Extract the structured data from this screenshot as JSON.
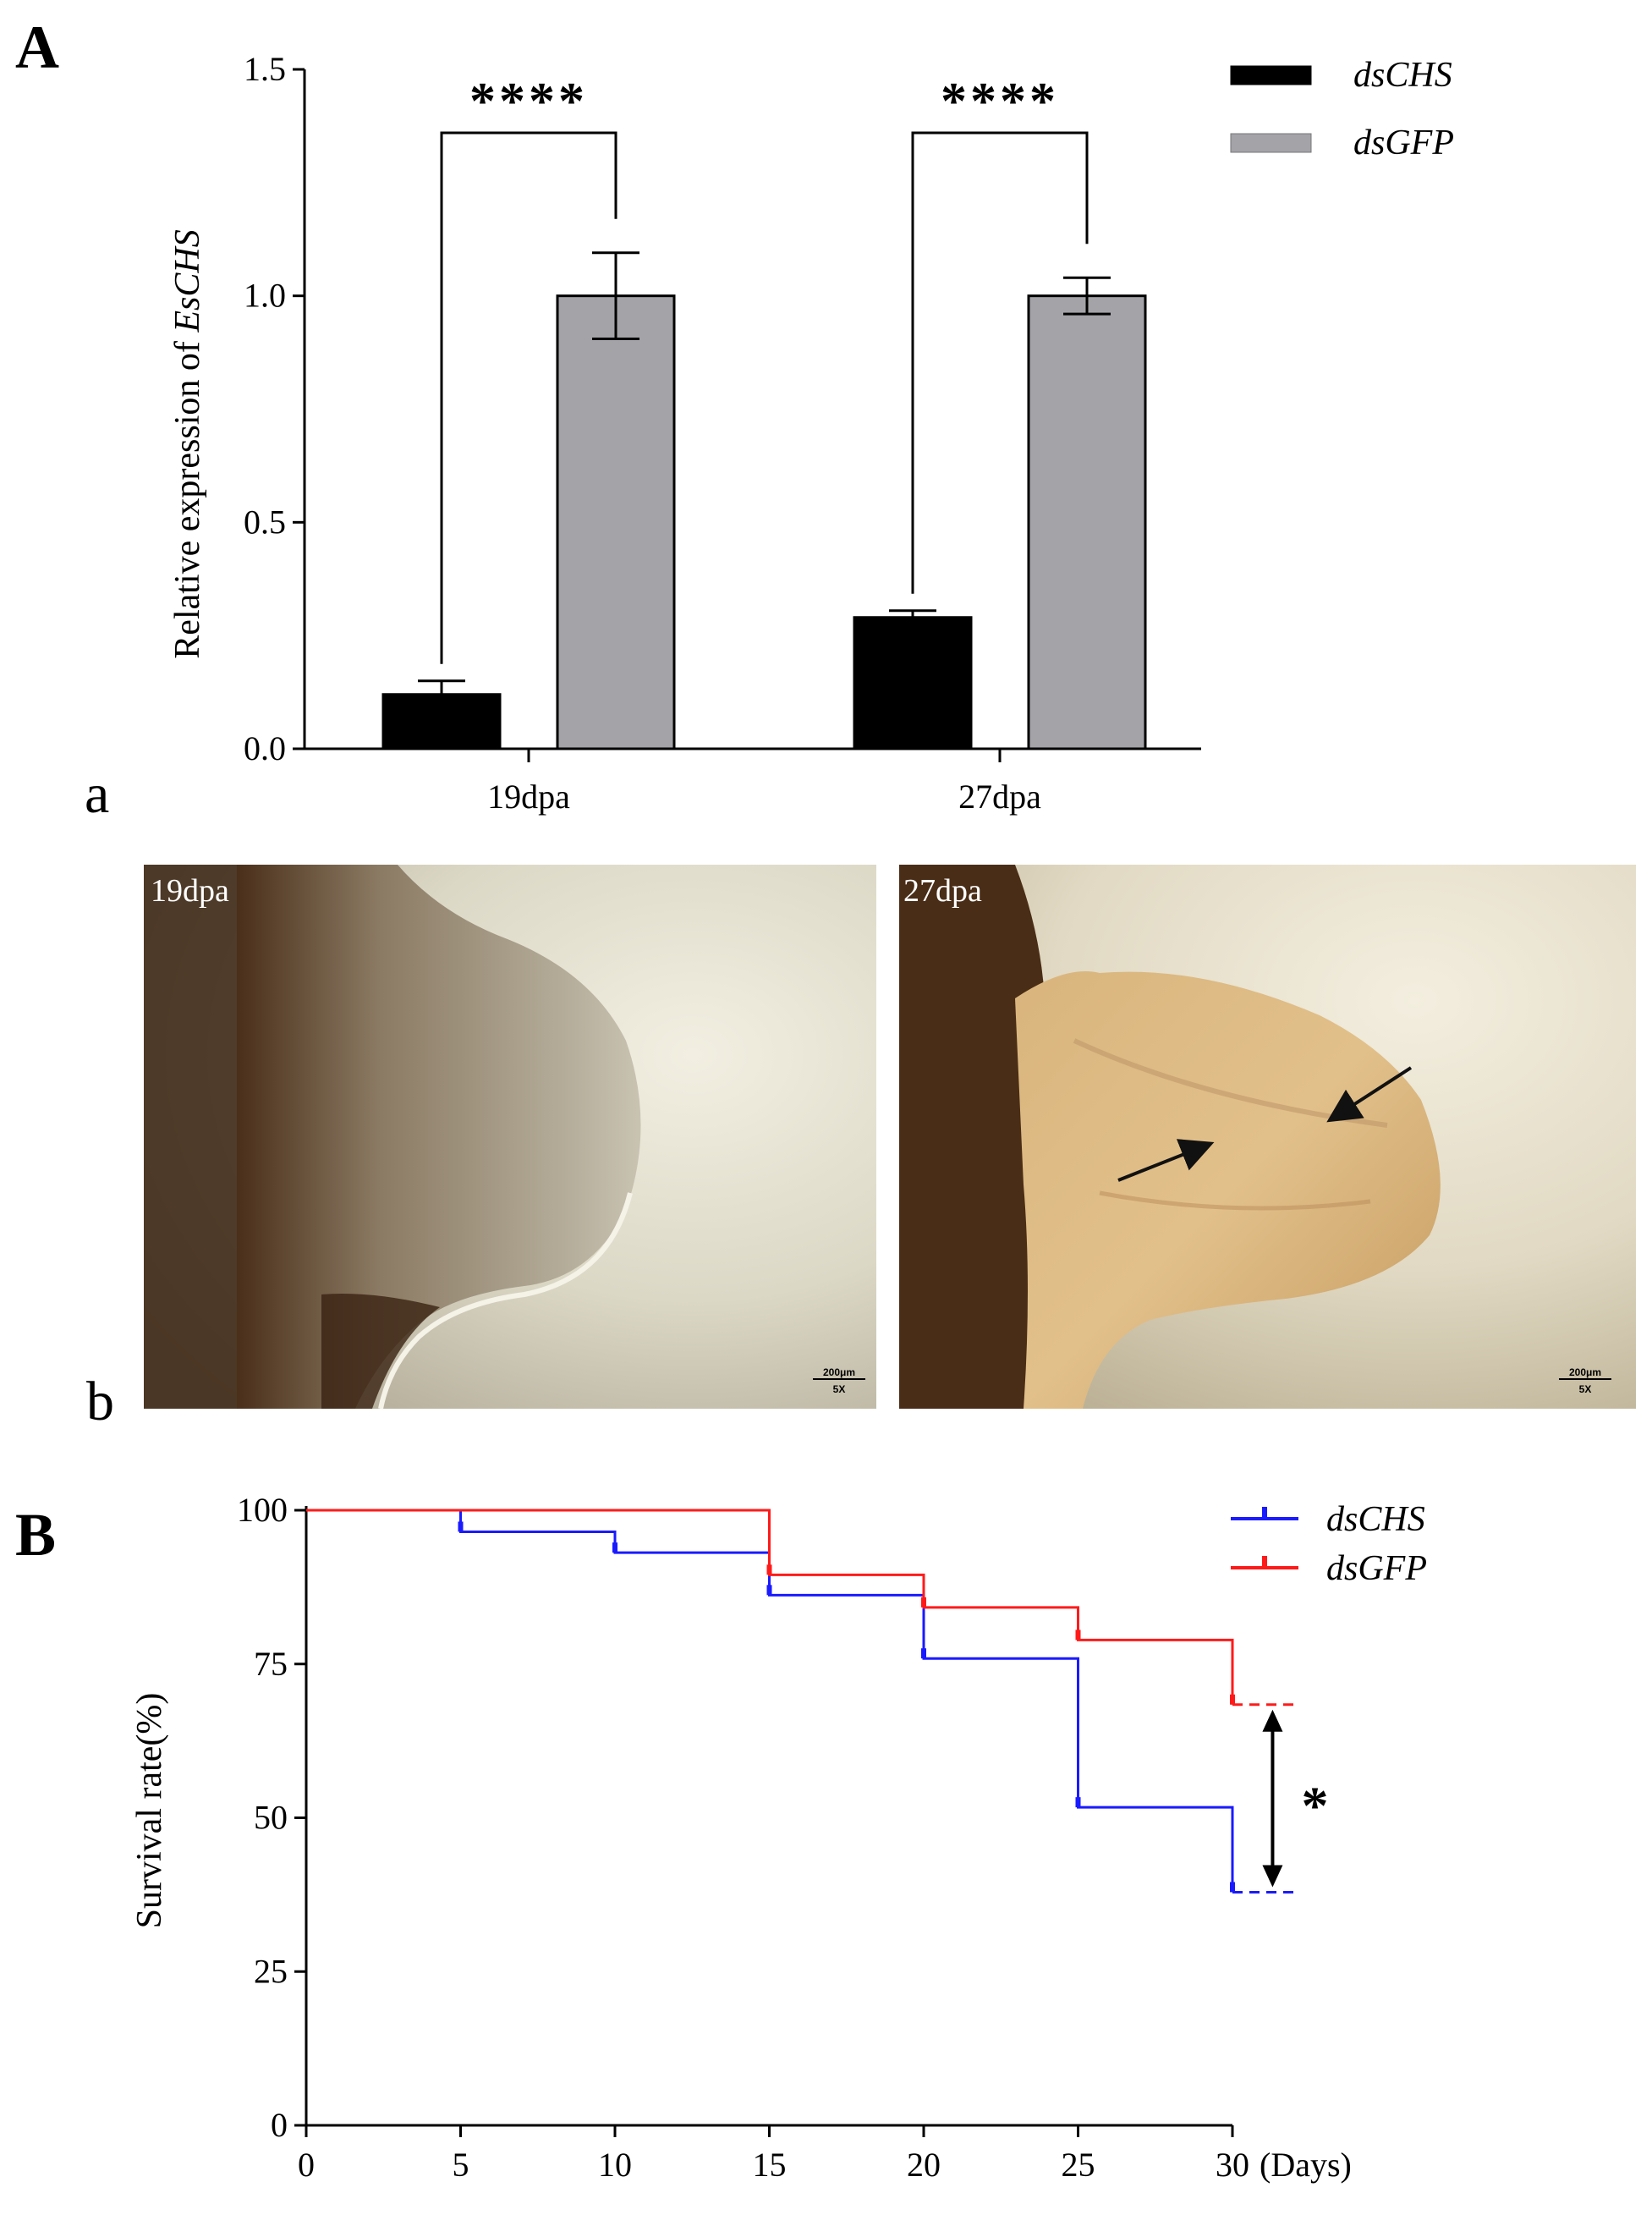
{
  "panels": {
    "A": "A",
    "a": "a",
    "b": "b",
    "B": "B"
  },
  "chart_data": [
    {
      "id": "expression",
      "type": "bar",
      "ylabel_prefix": "Relative expression of ",
      "ylabel_gene": "EsCHS",
      "categories": [
        "19dpa",
        "27dpa"
      ],
      "ylim": [
        0,
        1.5
      ],
      "yticks": [
        0.0,
        0.5,
        1.0,
        1.5
      ],
      "ytick_labels": [
        "0.0",
        "0.5",
        "1.0",
        "1.5"
      ],
      "series": [
        {
          "name": "dsCHS",
          "color": "#000000",
          "values": [
            0.12,
            0.29
          ],
          "errors": [
            0.03,
            0.015
          ]
        },
        {
          "name": "dsGFP",
          "color": "#a3a3a8",
          "values": [
            1.0,
            1.0
          ],
          "errors": [
            0.095,
            0.04
          ]
        }
      ],
      "significance": [
        "****",
        "****"
      ],
      "grid": false,
      "legend_position": "top-right"
    },
    {
      "id": "survival",
      "type": "line",
      "ylabel": "Survival rate(%)",
      "x_unit": "(Days)",
      "xlim": [
        0,
        30
      ],
      "ylim": [
        0,
        100
      ],
      "xticks": [
        0,
        5,
        10,
        15,
        20,
        25,
        30
      ],
      "yticks": [
        0,
        25,
        50,
        75,
        100
      ],
      "series": [
        {
          "name": "dsCHS",
          "color": "#1a1aff",
          "x": [
            0,
            5,
            10,
            15,
            20,
            25,
            30
          ],
          "y": [
            100,
            96.5,
            93.1,
            86.2,
            75.9,
            51.7,
            37.9
          ]
        },
        {
          "name": "dsGFP",
          "color": "#ff1a1a",
          "x": [
            0,
            15,
            20,
            25,
            30
          ],
          "y": [
            100,
            89.5,
            84.2,
            78.9,
            68.4
          ]
        }
      ],
      "extension_to_x": 32,
      "significance": "*",
      "grid": false,
      "legend_position": "top-right"
    }
  ],
  "micrographs": [
    {
      "label": "19dpa",
      "scale_bar": "200μm",
      "magnification": "5X"
    },
    {
      "label": "27dpa",
      "scale_bar": "200μm",
      "magnification": "5X"
    }
  ]
}
